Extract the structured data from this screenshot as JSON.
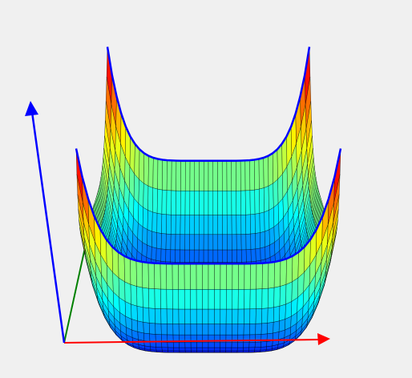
{
  "axes": {
    "x": {
      "color": "#ff0000"
    },
    "y": {
      "color": "#008000"
    },
    "z": {
      "color": "#0000ff"
    }
  },
  "surface": {
    "edge_color": "#0000ff"
  }
}
